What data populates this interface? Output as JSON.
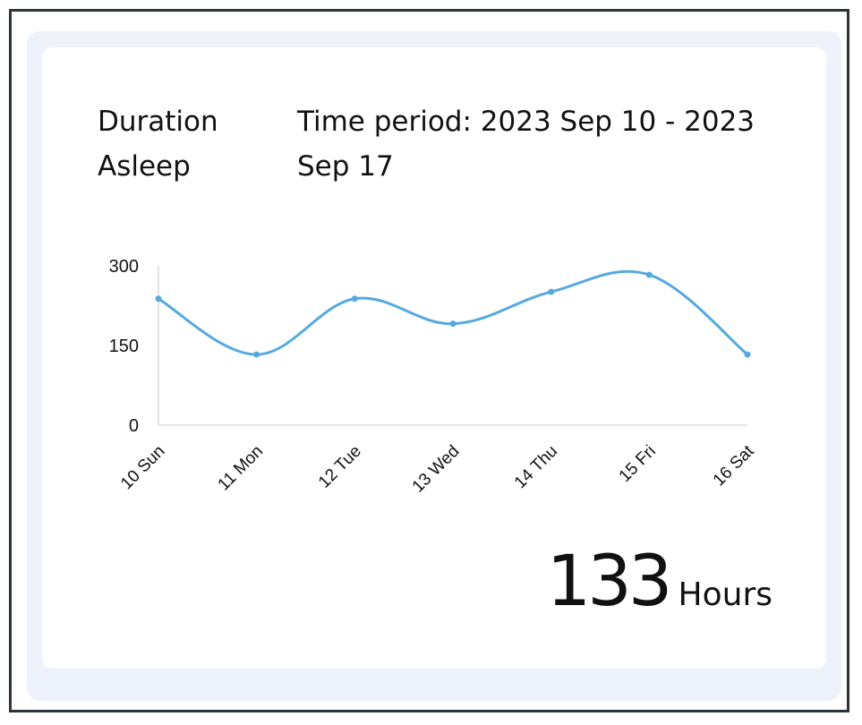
{
  "card": {
    "metric_title": "Duration Asleep",
    "period_label": "Time period: 2023 Sep 10 - 2023 Sep 17",
    "total_value": "133",
    "total_unit": "Hours"
  },
  "colors": {
    "line": "#56a9e0",
    "axis": "#cccccc",
    "panel": "#eef3fb"
  },
  "chart_data": {
    "type": "line",
    "title": "",
    "xlabel": "",
    "ylabel": "",
    "categories": [
      "10 Sun",
      "11 Mon",
      "12 Tue",
      "13 Wed",
      "14 Thu",
      "15 Fri",
      "16 Sat"
    ],
    "series": [
      {
        "name": "Duration Asleep",
        "values": [
          238,
          133,
          238,
          191,
          251,
          283,
          133
        ]
      }
    ],
    "ylim": [
      0,
      300
    ],
    "yticks": [
      0,
      150,
      300
    ],
    "grid": false,
    "smooth": true
  }
}
